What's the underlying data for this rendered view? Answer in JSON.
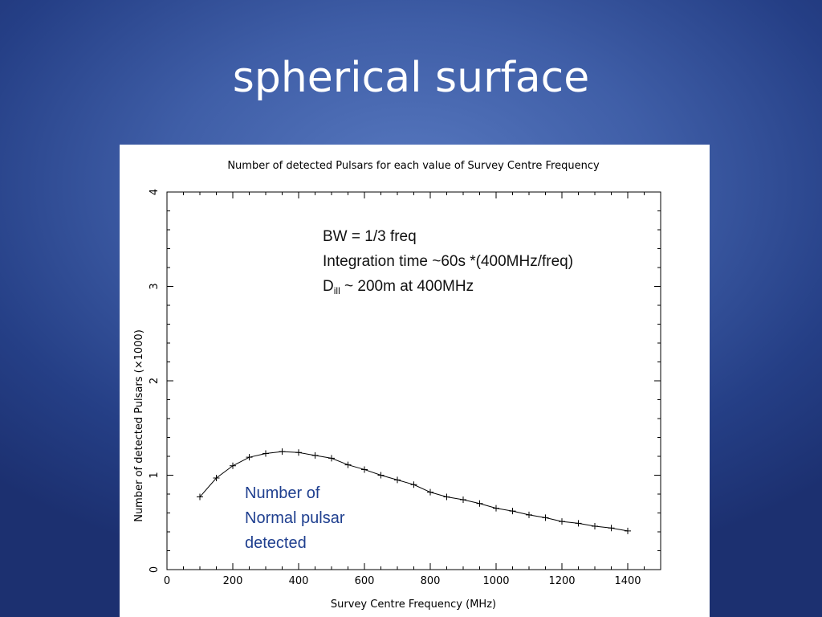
{
  "slide": {
    "title": "spherical surface"
  },
  "annotations": {
    "params_lines": [
      "BW = 1/3 freq",
      "Integration time  ~60s *(400MHz/freq)"
    ],
    "dill": {
      "base": "D",
      "sub": "ill",
      "rest": " ~ 200m at 400MHz"
    },
    "series_note_lines": [
      "Number of",
      "Normal pulsar",
      "detected"
    ]
  },
  "chart_data": {
    "type": "line",
    "title": "Number of detected Pulsars for each value of Survey Centre Frequency",
    "xlabel": "Survey Centre Frequency (MHz)",
    "ylabel": "Number of detected Pulsars (×1000)",
    "xlim": [
      0,
      1500
    ],
    "ylim": [
      0,
      4
    ],
    "x_ticks": [
      0,
      200,
      400,
      600,
      800,
      1000,
      1200,
      1400
    ],
    "y_ticks": [
      0,
      1,
      2,
      3,
      4
    ],
    "marker": "+",
    "x": [
      100,
      150,
      200,
      250,
      300,
      350,
      400,
      450,
      500,
      550,
      600,
      650,
      700,
      750,
      800,
      850,
      900,
      950,
      1000,
      1050,
      1100,
      1150,
      1200,
      1250,
      1300,
      1350,
      1400
    ],
    "y": [
      0.77,
      0.97,
      1.1,
      1.19,
      1.23,
      1.25,
      1.24,
      1.21,
      1.18,
      1.11,
      1.06,
      1.0,
      0.95,
      0.9,
      0.82,
      0.77,
      0.74,
      0.7,
      0.65,
      0.62,
      0.58,
      0.55,
      0.51,
      0.49,
      0.46,
      0.44,
      0.41
    ]
  }
}
